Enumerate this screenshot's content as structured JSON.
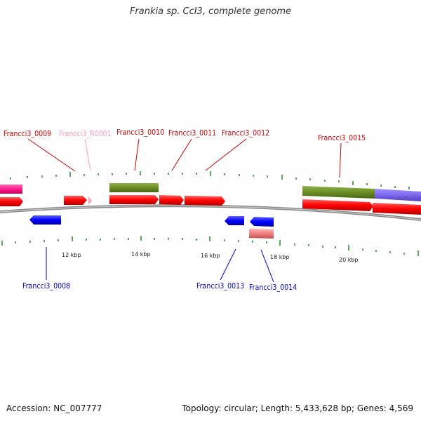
{
  "title": "Frankia sp. CcI3, complete genome",
  "footer": {
    "accession": "Accession: NC_007777",
    "stats": "Topology: circular; Length: 5,433,628 bp; Genes: 4,569"
  },
  "colors": {
    "cds": "#ff1a1a",
    "rrna_like": "#6b8e23",
    "blue_gene": "#1a1aff",
    "pink_gene": "#ff1a8c",
    "light_pink": "#ffb0cc",
    "salmon": "#f08080",
    "purple": "#7b68ee",
    "tick": "#228b22",
    "backbone": "#808080"
  },
  "scale_labels": [
    "12 kbp",
    "14 kbp",
    "16 kbp",
    "18 kbp",
    "20 kbp"
  ],
  "gene_labels_top": [
    {
      "text": "Francci3_0009",
      "color": "#cc0000"
    },
    {
      "text": "Francci3_R0001",
      "color": "#ff99bb"
    },
    {
      "text": "Francci3_0010",
      "color": "#cc0000"
    },
    {
      "text": "Francci3_0011",
      "color": "#cc0000"
    },
    {
      "text": "Francci3_0012",
      "color": "#cc0000"
    },
    {
      "text": "Francci3_0015",
      "color": "#cc0000"
    }
  ],
  "gene_labels_bottom": [
    {
      "text": "Francci3_0008",
      "color": "#0000cc"
    },
    {
      "text": "Francci3_0013",
      "color": "#0000cc"
    },
    {
      "text": "Francci3_0014",
      "color": "#0000cc"
    }
  ]
}
